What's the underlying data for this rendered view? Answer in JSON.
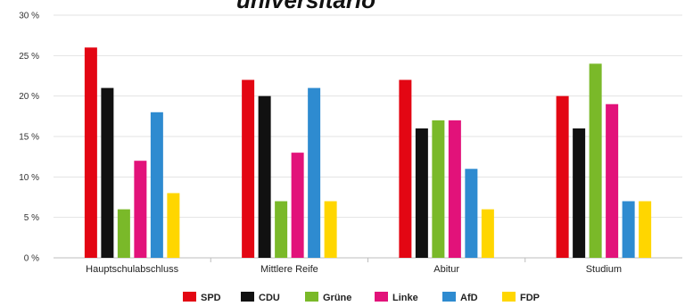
{
  "chart_data": {
    "type": "bar",
    "title": "universitario",
    "categories": [
      "Hauptschulabschluss",
      "Mittlere Reife",
      "Abitur",
      "Studium"
    ],
    "series": [
      {
        "name": "SPD",
        "color": "#e30613",
        "values": [
          26,
          22,
          22,
          20
        ]
      },
      {
        "name": "CDU",
        "color": "#111111",
        "values": [
          21,
          20,
          16,
          16
        ]
      },
      {
        "name": "Grüne",
        "color": "#7ab929",
        "values": [
          6,
          7,
          17,
          24
        ]
      },
      {
        "name": "Linke",
        "color": "#e2127a",
        "values": [
          12,
          13,
          17,
          19
        ]
      },
      {
        "name": "AfD",
        "color": "#2e8bd0",
        "values": [
          18,
          21,
          11,
          7
        ]
      },
      {
        "name": "FDP",
        "color": "#ffd600",
        "values": [
          8,
          7,
          6,
          7
        ]
      }
    ],
    "yticks": [
      "0 %",
      "5 %",
      "10 %",
      "15 %",
      "20 %",
      "25 %",
      "30 %"
    ],
    "ylim": [
      0,
      30
    ],
    "grid": true,
    "legend": "bottom-center",
    "xlabel": "",
    "ylabel": ""
  }
}
